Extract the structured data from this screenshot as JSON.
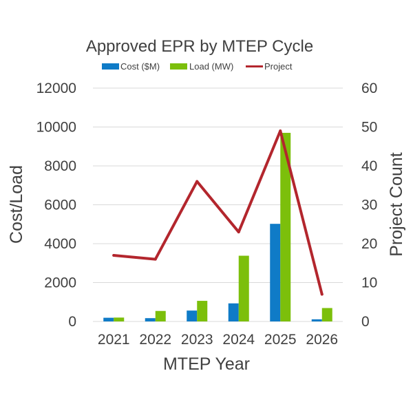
{
  "chart_data": {
    "type": "bar",
    "title": "Approved EPR by MTEP Cycle",
    "categories": [
      "2021",
      "2022",
      "2023",
      "2024",
      "2025",
      "2026"
    ],
    "series": [
      {
        "name": "Cost ($M)",
        "kind": "bar",
        "axis": "left",
        "color": "#0f7bc7",
        "values": [
          190,
          170,
          560,
          930,
          5020,
          110
        ]
      },
      {
        "name": "Load (MW)",
        "kind": "bar",
        "axis": "left",
        "color": "#7cbf0b",
        "values": [
          200,
          540,
          1060,
          3380,
          9700,
          690
        ]
      },
      {
        "name": "Project",
        "kind": "line",
        "axis": "right",
        "color": "#b3262d",
        "values": [
          17,
          16,
          36,
          23,
          49,
          7
        ]
      }
    ],
    "xlabel": "MTEP Year",
    "ylabel": "Cost/Load",
    "y2label": "Project Count",
    "ylim": [
      0,
      12000
    ],
    "y2lim": [
      0,
      60
    ],
    "yticks": [
      "0",
      "2000",
      "4000",
      "6000",
      "8000",
      "10000",
      "12000"
    ],
    "y2ticks": [
      "0",
      "10",
      "20",
      "30",
      "40",
      "50",
      "60"
    ],
    "grid": true,
    "legend_position": "top"
  }
}
